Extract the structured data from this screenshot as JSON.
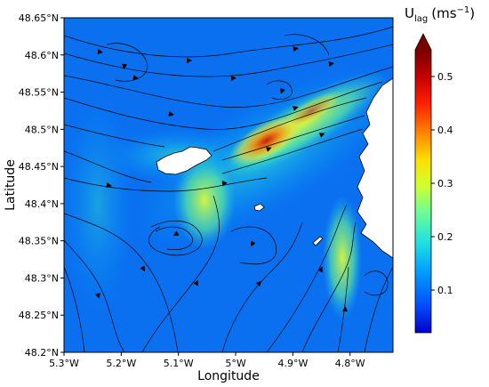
{
  "map": {
    "x_axis": {
      "label": "Longitude",
      "range": [
        -5.3,
        -4.725
      ],
      "ticks": [
        {
          "value": -5.3,
          "label": "5.3°W"
        },
        {
          "value": -5.2,
          "label": "5.2°W"
        },
        {
          "value": -5.1,
          "label": "5.1°W"
        },
        {
          "value": -5.0,
          "label": "5°W"
        },
        {
          "value": -4.9,
          "label": "4.9°W"
        },
        {
          "value": -4.8,
          "label": "4.8°W"
        }
      ]
    },
    "y_axis": {
      "label": "Latitude",
      "range": [
        48.2,
        48.65
      ],
      "ticks": [
        {
          "value": 48.2,
          "label": "48.2°N"
        },
        {
          "value": 48.25,
          "label": "48.25°N"
        },
        {
          "value": 48.3,
          "label": "48.3°N"
        },
        {
          "value": 48.35,
          "label": "48.35°N"
        },
        {
          "value": 48.4,
          "label": "48.4°N"
        },
        {
          "value": 48.45,
          "label": "48.45°N"
        },
        {
          "value": 48.5,
          "label": "48.5°N"
        },
        {
          "value": 48.55,
          "label": "48.55°N"
        },
        {
          "value": 48.6,
          "label": "48.6°N"
        },
        {
          "value": 48.65,
          "label": "48.65°N"
        }
      ]
    },
    "land_color": "#ffffff",
    "streamline_color": "#000000"
  },
  "colorbar": {
    "title_main": "U",
    "title_sub": "lag",
    "title_unit": "(ms",
    "title_exp": "−1",
    "title_close": ")",
    "range": [
      0.02,
      0.55
    ],
    "extend": "max",
    "ticks": [
      {
        "value": 0.1,
        "label": "0.1"
      },
      {
        "value": 0.2,
        "label": "0.2"
      },
      {
        "value": 0.3,
        "label": "0.3"
      },
      {
        "value": 0.4,
        "label": "0.4"
      },
      {
        "value": 0.5,
        "label": "0.5"
      }
    ],
    "colormap": [
      "#0000c8",
      "#0050ff",
      "#00a0ff",
      "#20e0e0",
      "#70ff90",
      "#d0ff30",
      "#ffe000",
      "#ff8000",
      "#ff2000",
      "#c00000",
      "#7a0000"
    ]
  }
}
